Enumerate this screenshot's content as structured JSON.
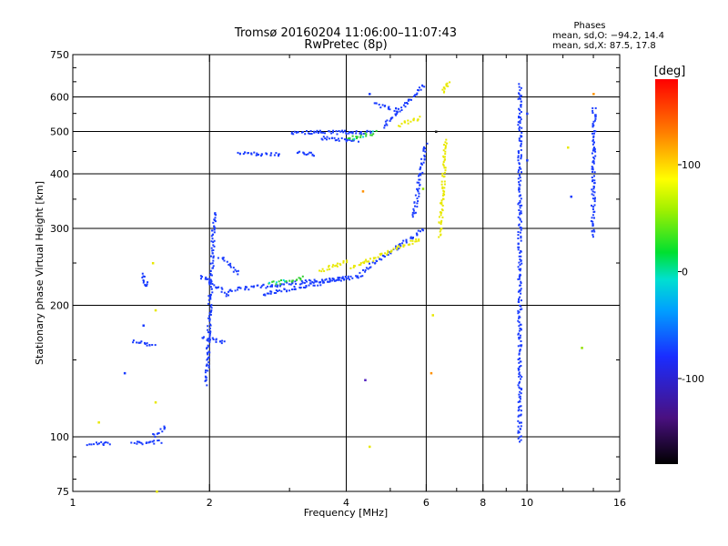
{
  "header": {
    "title_line1": "Tromsø 20160204 11:06:00–11:07:43",
    "title_line2": "RwPretec (8p)"
  },
  "stats": {
    "heading": "Phases",
    "line_o": "mean, sd,O: −94.2, 14.4",
    "line_x": "mean, sd,X:  87.5, 17.8"
  },
  "chart_data": {
    "type": "scatter",
    "xlabel": "Frequency [MHz]",
    "ylabel": "Stationary phase Virtual Height [km]",
    "x_scale": "log",
    "y_scale": "log",
    "xlim": [
      1,
      16
    ],
    "ylim": [
      75,
      750
    ],
    "x_ticks": [
      1,
      2,
      4,
      6,
      8,
      10,
      16
    ],
    "x_tick_labels": [
      "1",
      "2",
      "4",
      "6",
      "8",
      "10",
      "16"
    ],
    "x_minor_ticks": [
      3,
      5,
      7,
      9,
      12,
      14
    ],
    "y_ticks": [
      75,
      100,
      200,
      300,
      400,
      500,
      600,
      750
    ],
    "y_tick_labels": [
      "75",
      "100",
      "200",
      "300",
      "400",
      "500",
      "600",
      "750"
    ],
    "y_minor_ticks": [
      80,
      90,
      150,
      250,
      350,
      450,
      550,
      650,
      700
    ],
    "grid": true,
    "grid_x": [
      2,
      4,
      6,
      8,
      10
    ],
    "grid_y": [
      100,
      200,
      300,
      400,
      500,
      600
    ],
    "colorbar": {
      "label": "[deg]",
      "min": -180,
      "max": 180,
      "ticks": [
        100,
        0,
        -100
      ],
      "tick_labels": [
        "100",
        "0",
        "-100"
      ]
    },
    "colors": {
      "o_mode": "#1a3cff",
      "x_mode": "#e8e800",
      "accent_cyan": "#00d8e0",
      "accent_green": "#30d030",
      "accent_red": "#e02010"
    },
    "point_traces": [
      {
        "f": [
          1.08,
          1.2
        ],
        "h": [
          97,
          97
        ],
        "phase": -100
      },
      {
        "f": [
          1.35,
          1.55
        ],
        "h": [
          97,
          98
        ],
        "phase": -100
      },
      {
        "f": [
          1.5,
          1.6
        ],
        "h": [
          101,
          106
        ],
        "phase": -100
      },
      {
        "f": [
          1.35,
          1.5
        ],
        "h": [
          167,
          163
        ],
        "phase": -100
      },
      {
        "f": [
          1.42,
          1.45
        ],
        "h": [
          236,
          221
        ],
        "phase": -100
      },
      {
        "f": [
          1.96,
          2.04
        ],
        "h": [
          133,
          330
        ],
        "phase": -100
      },
      {
        "f": [
          1.9,
          2.2
        ],
        "h": [
          235,
          212
        ],
        "phase": -100
      },
      {
        "f": [
          1.92,
          2.15
        ],
        "h": [
          170,
          165
        ],
        "phase": -100
      },
      {
        "f": [
          2.1,
          2.3
        ],
        "h": [
          260,
          238
        ],
        "phase": -100
      },
      {
        "f": [
          2.2,
          4.0
        ],
        "h": [
          218,
          232
        ],
        "phase": -100
      },
      {
        "f": [
          2.6,
          4.3
        ],
        "h": [
          213,
          235
        ],
        "phase": -100
      },
      {
        "f": [
          4.3,
          5.9
        ],
        "h": [
          240,
          300
        ],
        "phase": -100
      },
      {
        "f": [
          5.6,
          5.95
        ],
        "h": [
          320,
          470
        ],
        "phase": -100
      },
      {
        "f": [
          2.3,
          2.85
        ],
        "h": [
          446,
          446
        ],
        "phase": -100
      },
      {
        "f": [
          3.1,
          3.4
        ],
        "h": [
          450,
          445
        ],
        "phase": -100
      },
      {
        "f": [
          3.0,
          4.5
        ],
        "h": [
          500,
          500
        ],
        "phase": -100
      },
      {
        "f": [
          3.5,
          4.2
        ],
        "h": [
          485,
          480
        ],
        "phase": -100
      },
      {
        "f": [
          4.8,
          5.9
        ],
        "h": [
          515,
          640
        ],
        "phase": -100
      },
      {
        "f": [
          4.6,
          5.2
        ],
        "h": [
          580,
          560
        ],
        "phase": -100
      },
      {
        "f": [
          3.5,
          4.0
        ],
        "h": [
          240,
          255
        ],
        "phase": 100
      },
      {
        "f": [
          4.1,
          5.8
        ],
        "h": [
          245,
          285
        ],
        "phase": 100
      },
      {
        "f": [
          5.2,
          5.8
        ],
        "h": [
          520,
          540
        ],
        "phase": 100
      },
      {
        "f": [
          6.4,
          6.6
        ],
        "h": [
          290,
          480
        ],
        "phase": 100
      },
      {
        "f": [
          6.5,
          6.7
        ],
        "h": [
          620,
          650
        ],
        "phase": 100
      },
      {
        "f": [
          2.7,
          3.2
        ],
        "h": [
          225,
          232
        ],
        "phase": 20
      },
      {
        "f": [
          4.0,
          4.6
        ],
        "h": [
          482,
          500
        ],
        "phase": 20
      },
      {
        "f": [
          9.6,
          9.6
        ],
        "h": [
          98,
          640
        ],
        "phase": -100
      },
      {
        "f": [
          13.9,
          14.0
        ],
        "h": [
          290,
          570
        ],
        "phase": -100
      }
    ],
    "isolated_points": [
      {
        "f": 1.14,
        "h": 108,
        "phase": 100
      },
      {
        "f": 1.5,
        "h": 250,
        "phase": 100
      },
      {
        "f": 1.52,
        "h": 120,
        "phase": 100
      },
      {
        "f": 1.53,
        "h": 75,
        "phase": 100
      },
      {
        "f": 1.52,
        "h": 195,
        "phase": 100
      },
      {
        "f": 1.3,
        "h": 140,
        "phase": -100
      },
      {
        "f": 1.43,
        "h": 180,
        "phase": -100
      },
      {
        "f": 4.35,
        "h": 365,
        "phase": 130
      },
      {
        "f": 4.4,
        "h": 135,
        "phase": -150
      },
      {
        "f": 4.5,
        "h": 95,
        "phase": 100
      },
      {
        "f": 5.9,
        "h": 370,
        "phase": 60
      },
      {
        "f": 6.3,
        "h": 500,
        "phase": -180
      },
      {
        "f": 6.2,
        "h": 190,
        "phase": 100
      },
      {
        "f": 6.15,
        "h": 140,
        "phase": 130
      },
      {
        "f": 10.0,
        "h": 550,
        "phase": -100
      },
      {
        "f": 10.0,
        "h": 430,
        "phase": -100
      },
      {
        "f": 12.3,
        "h": 460,
        "phase": 100
      },
      {
        "f": 12.5,
        "h": 355,
        "phase": -100
      },
      {
        "f": 13.2,
        "h": 160,
        "phase": 60
      },
      {
        "f": 14.0,
        "h": 610,
        "phase": 120
      },
      {
        "f": 4.5,
        "h": 610,
        "phase": -100
      }
    ]
  }
}
